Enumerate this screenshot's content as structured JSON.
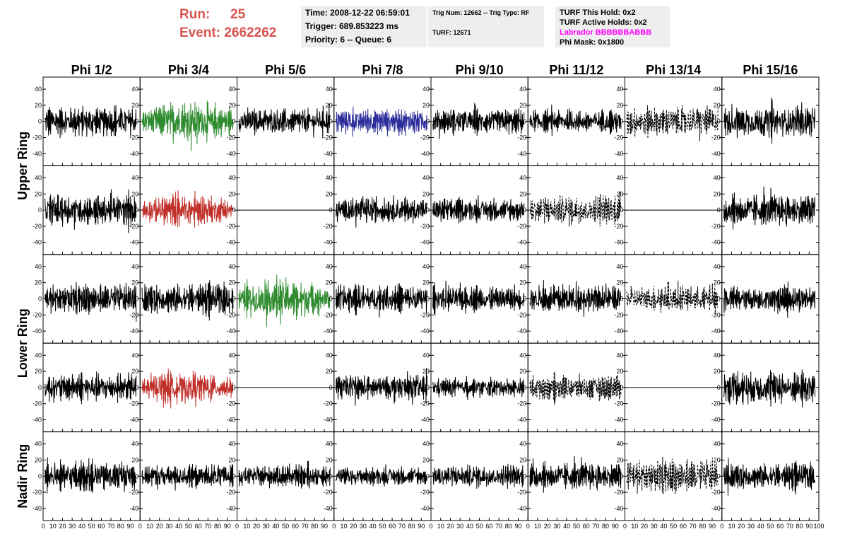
{
  "header": {
    "run_label": "Run:",
    "run_value": "25",
    "event_label": "Event:",
    "event_value": "2662262",
    "time": "Time: 2008-12-22 06:59:01",
    "trigger": "Trigger: 689.853223 ms",
    "priority": "Priority: 6 -- Queue: 6",
    "trig_num": "Trig Num: 12662 -- Trig Type: RF",
    "turf": "TURF: 12671",
    "turf_this_hold": "TURF This Hold: 0x2",
    "turf_active_holds": "TURF Active Holds: 0x2",
    "labrador": "Labrador BBBBBBABBB",
    "phi_mask": "Phi Mask: 0x1800"
  },
  "chart_data": {
    "type": "line",
    "columns": [
      "Phi 1/2",
      "Phi 3/4",
      "Phi 5/6",
      "Phi 7/8",
      "Phi 9/10",
      "Phi 11/12",
      "Phi 13/14",
      "Phi 15/16"
    ],
    "rows": [
      "Upper Ring",
      "Lower Ring",
      "Nadir Ring"
    ],
    "panel_rows": 5,
    "xlim": [
      0,
      100
    ],
    "ylim": [
      -55,
      55
    ],
    "y_ticks": [
      "40",
      "20",
      "0",
      "-20",
      "-40"
    ],
    "x_ticks": [
      "0",
      "10",
      "20",
      "30",
      "40",
      "50",
      "60",
      "70",
      "80",
      "90",
      "100"
    ],
    "colors": {
      "black": "#000000",
      "green": "#2e8b2e",
      "red": "#c0302a",
      "blue": "#2d2d9c",
      "header_red": "#d9534f"
    },
    "panels": [
      [
        {
          "style": "solid",
          "color": "black",
          "amp": 26
        },
        {
          "style": "solid",
          "color": "green",
          "amp": 36
        },
        {
          "style": "solid",
          "color": "black",
          "amp": 22
        },
        {
          "style": "solid",
          "color": "blue",
          "amp": 22
        },
        {
          "style": "solid",
          "color": "black",
          "amp": 22
        },
        {
          "style": "solid",
          "color": "black",
          "amp": 20
        },
        {
          "style": "dotted",
          "color": "black",
          "amp": 26
        },
        {
          "style": "solid",
          "color": "black",
          "amp": 28
        }
      ],
      [
        {
          "style": "solid",
          "color": "black",
          "amp": 26
        },
        {
          "style": "solid",
          "color": "red",
          "amp": 30
        },
        {
          "style": "flat",
          "color": "black",
          "amp": 0
        },
        {
          "style": "solid",
          "color": "black",
          "amp": 22
        },
        {
          "style": "solid",
          "color": "black",
          "amp": 20
        },
        {
          "style": "dotted",
          "color": "black",
          "amp": 26
        },
        {
          "style": "flat",
          "color": "black",
          "amp": 0
        },
        {
          "style": "solid",
          "color": "black",
          "amp": 28
        }
      ],
      [
        {
          "style": "solid",
          "color": "black",
          "amp": 26
        },
        {
          "style": "solid",
          "color": "black",
          "amp": 26
        },
        {
          "style": "solid",
          "color": "green",
          "amp": 38
        },
        {
          "style": "solid",
          "color": "black",
          "amp": 24
        },
        {
          "style": "solid",
          "color": "black",
          "amp": 22
        },
        {
          "style": "solid",
          "color": "black",
          "amp": 24
        },
        {
          "style": "dotted",
          "color": "black",
          "amp": 22
        },
        {
          "style": "solid",
          "color": "black",
          "amp": 22
        }
      ],
      [
        {
          "style": "solid",
          "color": "black",
          "amp": 24
        },
        {
          "style": "solid",
          "color": "red",
          "amp": 30
        },
        {
          "style": "flat",
          "color": "black",
          "amp": 0
        },
        {
          "style": "solid",
          "color": "black",
          "amp": 22
        },
        {
          "style": "solid",
          "color": "black",
          "amp": 16
        },
        {
          "style": "dotted",
          "color": "black",
          "amp": 22
        },
        {
          "style": "flat",
          "color": "black",
          "amp": 0
        },
        {
          "style": "solid",
          "color": "black",
          "amp": 30
        }
      ],
      [
        {
          "style": "solid",
          "color": "black",
          "amp": 26
        },
        {
          "style": "solid",
          "color": "black",
          "amp": 20
        },
        {
          "style": "solid",
          "color": "black",
          "amp": 18
        },
        {
          "style": "solid",
          "color": "black",
          "amp": 16
        },
        {
          "style": "solid",
          "color": "black",
          "amp": 20
        },
        {
          "style": "solid",
          "color": "black",
          "amp": 24
        },
        {
          "style": "dotted",
          "color": "black",
          "amp": 30
        },
        {
          "style": "solid",
          "color": "black",
          "amp": 22
        }
      ]
    ]
  }
}
